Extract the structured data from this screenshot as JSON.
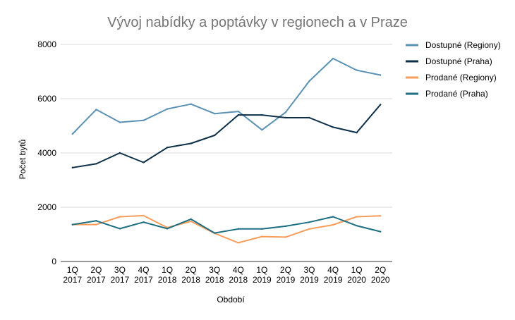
{
  "chart_data": {
    "type": "line",
    "title": "Vývoj nabídky a poptávky v regionech a v Praze",
    "xlabel": "Období",
    "ylabel": "Počet bytů",
    "ylim": [
      0,
      8000
    ],
    "yticks": [
      "0",
      "2000",
      "4000",
      "6000",
      "8000"
    ],
    "grid": true,
    "legend_position": "right",
    "categories": [
      [
        "1Q",
        "2017"
      ],
      [
        "2Q",
        "2017"
      ],
      [
        "3Q",
        "2017"
      ],
      [
        "4Q",
        "2017"
      ],
      [
        "1Q",
        "2018"
      ],
      [
        "2Q",
        "2018"
      ],
      [
        "3Q",
        "2018"
      ],
      [
        "4Q",
        "2018"
      ],
      [
        "1Q",
        "2019"
      ],
      [
        "2Q",
        "2019"
      ],
      [
        "3Q",
        "2019"
      ],
      [
        "4Q",
        "2019"
      ],
      [
        "1Q",
        "2020"
      ],
      [
        "2Q",
        "2020"
      ]
    ],
    "series": [
      {
        "name": "Dostupné (Regiony)",
        "color": "#5b92b3",
        "values": [
          4700,
          5600,
          5130,
          5200,
          5620,
          5800,
          5450,
          5530,
          4850,
          5500,
          6650,
          7480,
          7050,
          6870
        ]
      },
      {
        "name": "Dostupné (Praha)",
        "color": "#0d2f48",
        "values": [
          3460,
          3600,
          4000,
          3650,
          4200,
          4350,
          4650,
          5400,
          5400,
          5300,
          5300,
          4950,
          4750,
          5780
        ]
      },
      {
        "name": "Prodané (Regiony)",
        "color": "#f79d5c",
        "values": [
          1360,
          1360,
          1650,
          1690,
          1250,
          1480,
          1040,
          690,
          920,
          900,
          1200,
          1350,
          1650,
          1680
        ]
      },
      {
        "name": "Prodané (Praha)",
        "color": "#1e6f82",
        "values": [
          1360,
          1500,
          1210,
          1450,
          1210,
          1560,
          1050,
          1200,
          1200,
          1300,
          1450,
          1650,
          1320,
          1100
        ]
      }
    ]
  }
}
